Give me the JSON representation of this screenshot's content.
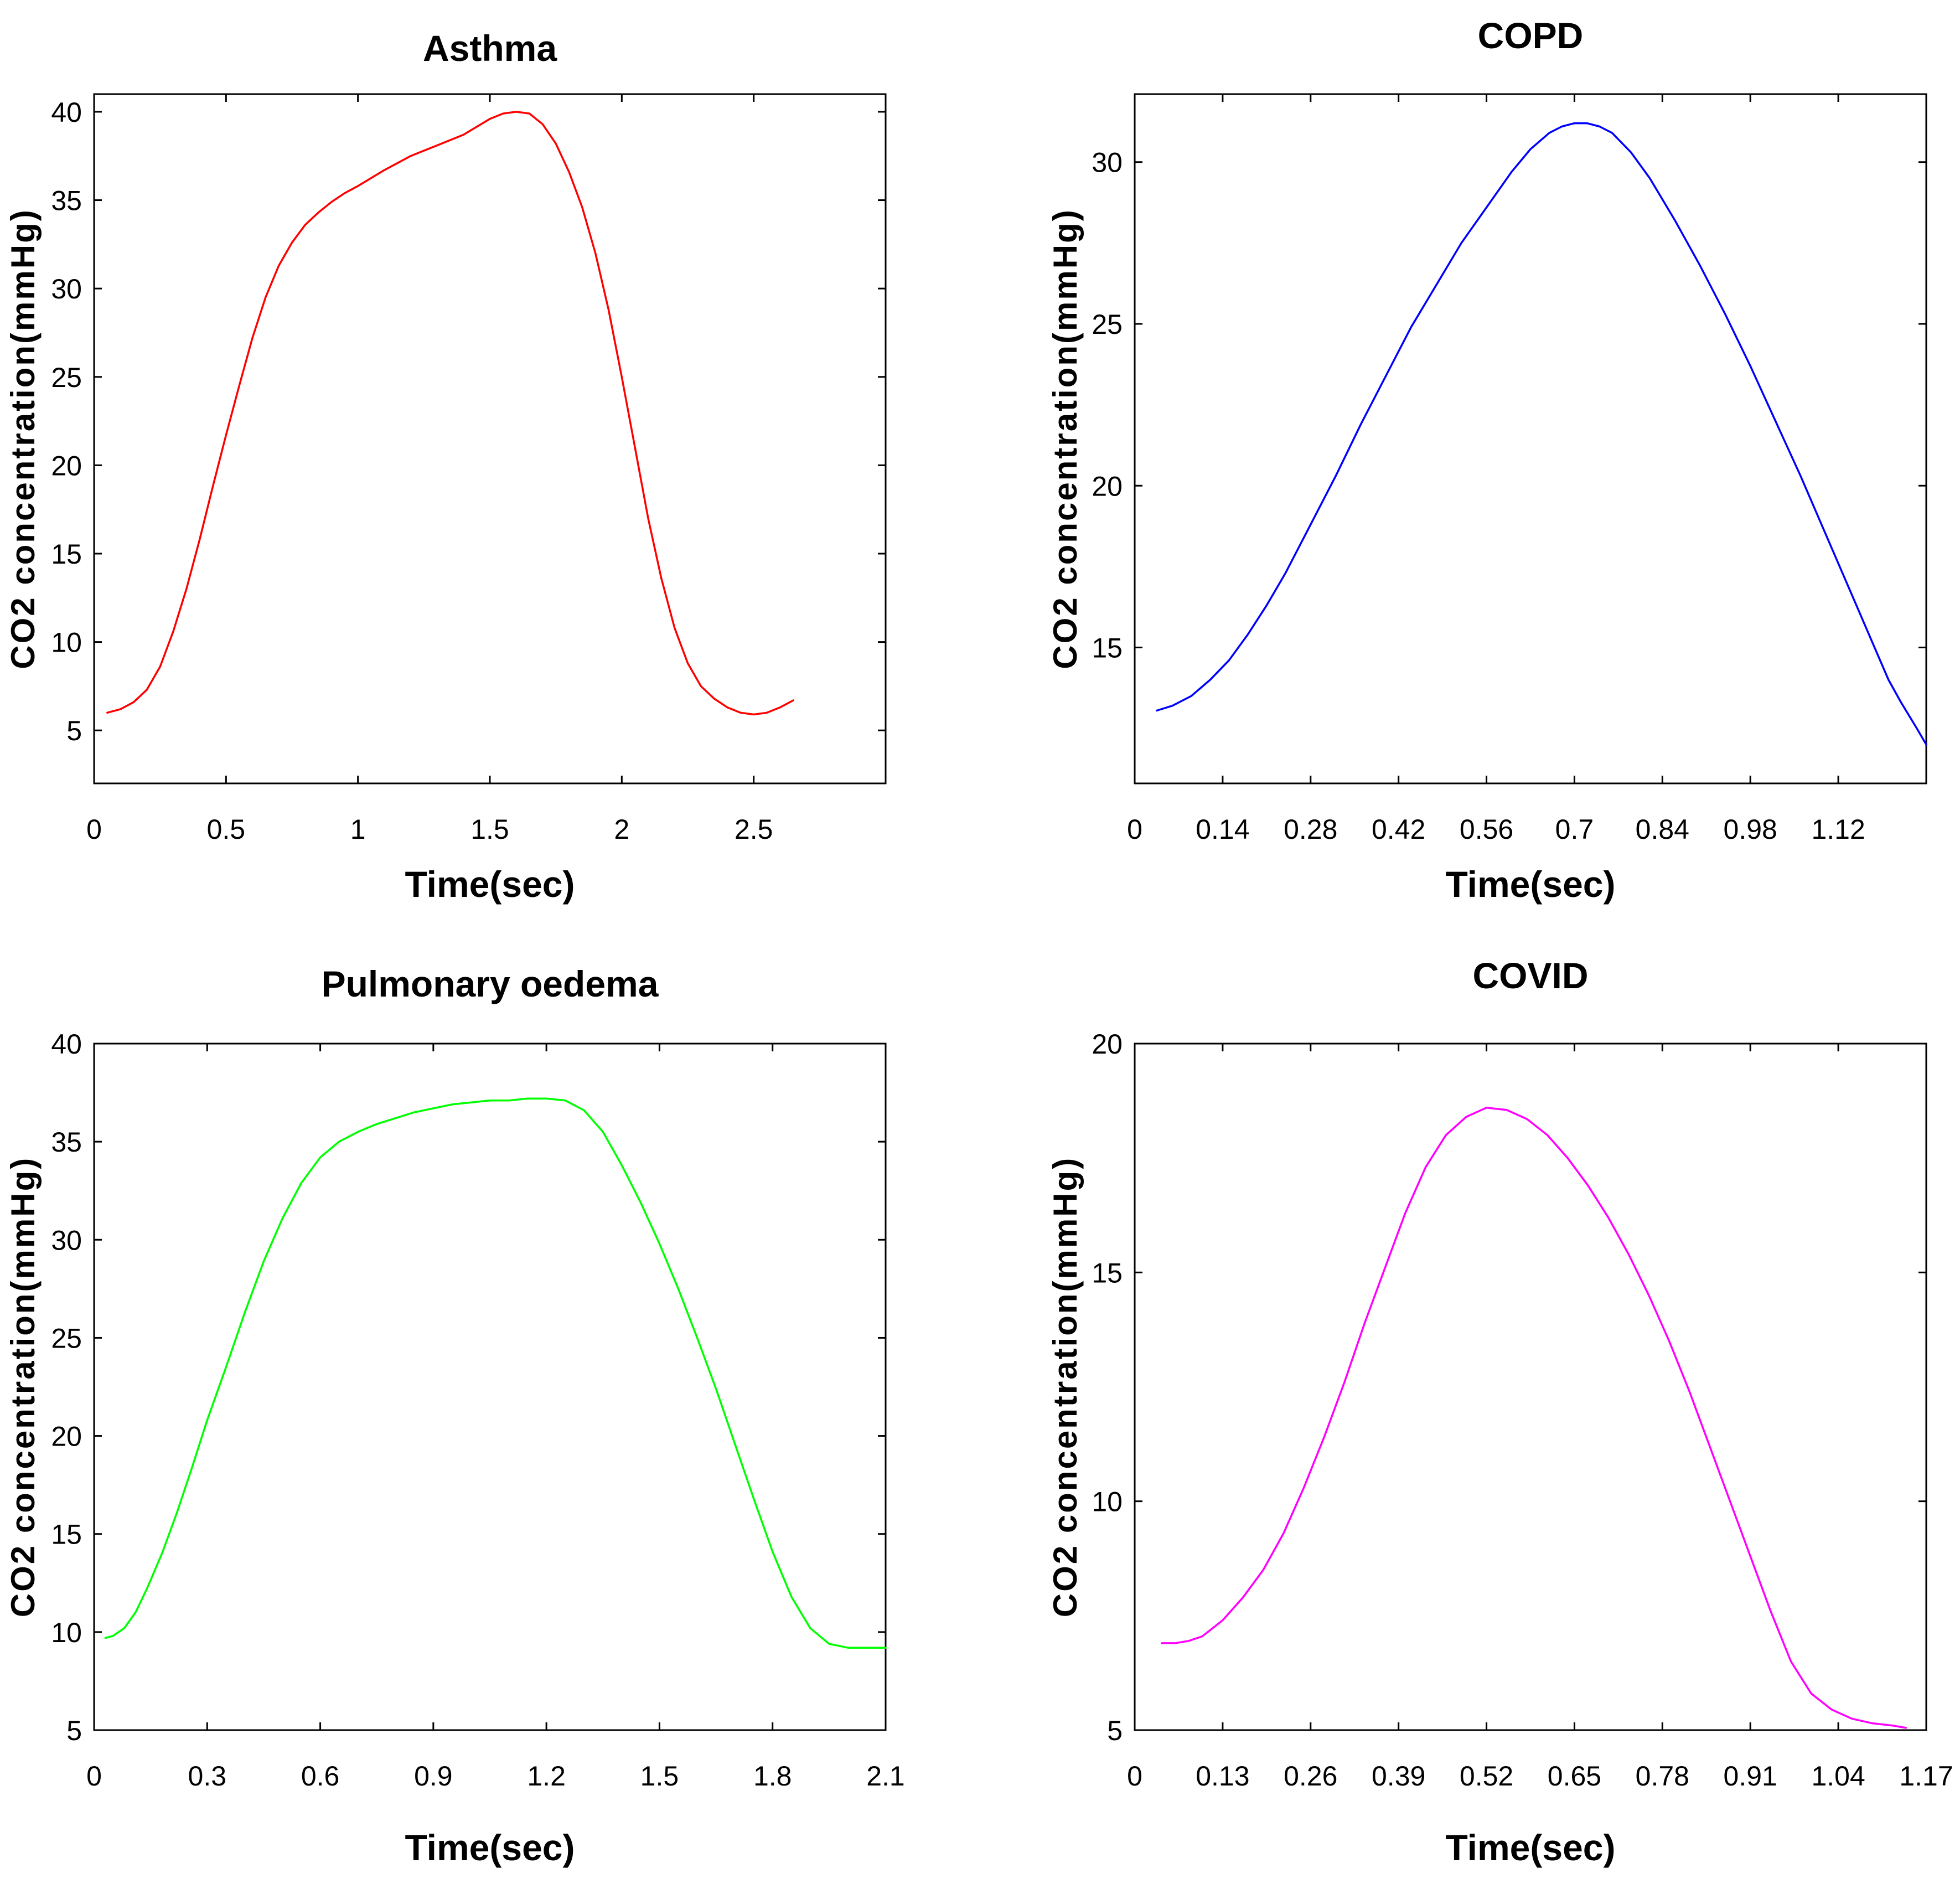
{
  "chart_data": [
    {
      "type": "line",
      "title": "Asthma",
      "xlabel": "Time(sec)",
      "ylabel": "CO2 concentration(mmHg)",
      "xlim": [
        0,
        3.0
      ],
      "ylim": [
        2,
        41
      ],
      "xticks": [
        0,
        0.5,
        1,
        1.5,
        2,
        2.5
      ],
      "xtick_labels": [
        "0",
        "0.5",
        "1",
        "1.5",
        "2",
        "2.5"
      ],
      "yticks": [
        5,
        10,
        15,
        20,
        25,
        30,
        35,
        40
      ],
      "ytick_labels": [
        "5",
        "10",
        "15",
        "20",
        "25",
        "30",
        "35",
        "40"
      ],
      "color": "#ff0000",
      "grid": false,
      "series": [
        {
          "name": "Asthma",
          "x": [
            0.05,
            0.1,
            0.15,
            0.2,
            0.25,
            0.3,
            0.35,
            0.4,
            0.45,
            0.5,
            0.55,
            0.6,
            0.65,
            0.7,
            0.75,
            0.8,
            0.85,
            0.9,
            0.95,
            1.0,
            1.1,
            1.2,
            1.3,
            1.4,
            1.5,
            1.55,
            1.6,
            1.65,
            1.7,
            1.75,
            1.8,
            1.85,
            1.9,
            1.95,
            2.0,
            2.05,
            2.1,
            2.15,
            2.2,
            2.25,
            2.3,
            2.35,
            2.4,
            2.45,
            2.5,
            2.55,
            2.6,
            2.65
          ],
          "y": [
            6.0,
            6.2,
            6.6,
            7.3,
            8.6,
            10.6,
            13.0,
            15.8,
            18.8,
            21.7,
            24.5,
            27.2,
            29.5,
            31.3,
            32.6,
            33.6,
            34.3,
            34.9,
            35.4,
            35.8,
            36.7,
            37.5,
            38.1,
            38.7,
            39.6,
            39.9,
            40.0,
            39.9,
            39.3,
            38.2,
            36.6,
            34.6,
            32.0,
            28.8,
            25.0,
            21.0,
            17.0,
            13.6,
            10.8,
            8.8,
            7.5,
            6.8,
            6.3,
            6.0,
            5.9,
            6.0,
            6.3,
            6.7
          ]
        }
      ]
    },
    {
      "type": "line",
      "title": "COPD",
      "xlabel": "Time(sec)",
      "ylabel": "CO2 concentration(mmHg)",
      "xlim": [
        0,
        1.26
      ],
      "ylim": [
        10.8,
        32.1
      ],
      "xticks": [
        0,
        0.14,
        0.28,
        0.42,
        0.56,
        0.7,
        0.84,
        0.98,
        1.12
      ],
      "xtick_labels": [
        "0",
        "0.14",
        "0.28",
        "0.42",
        "0.56",
        "0.7",
        "0.84",
        "0.98",
        "1.12"
      ],
      "yticks": [
        15,
        20,
        25,
        30
      ],
      "ytick_labels": [
        "15",
        "20",
        "25",
        "30"
      ],
      "color": "#0000ff",
      "grid": false,
      "series": [
        {
          "name": "COPD",
          "x": [
            0.035,
            0.06,
            0.09,
            0.12,
            0.15,
            0.18,
            0.21,
            0.24,
            0.28,
            0.32,
            0.36,
            0.4,
            0.44,
            0.48,
            0.52,
            0.56,
            0.6,
            0.63,
            0.66,
            0.68,
            0.7,
            0.72,
            0.74,
            0.76,
            0.79,
            0.82,
            0.86,
            0.9,
            0.94,
            0.98,
            1.02,
            1.06,
            1.1,
            1.14,
            1.18,
            1.2,
            1.22,
            1.245,
            1.26
          ],
          "y": [
            13.05,
            13.2,
            13.5,
            14.0,
            14.6,
            15.4,
            16.3,
            17.3,
            18.8,
            20.3,
            21.9,
            23.4,
            24.9,
            26.2,
            27.5,
            28.6,
            29.7,
            30.4,
            30.9,
            31.1,
            31.2,
            31.2,
            31.1,
            30.9,
            30.3,
            29.5,
            28.2,
            26.8,
            25.3,
            23.7,
            22.0,
            20.3,
            18.5,
            16.7,
            14.9,
            14.0,
            13.3,
            12.5,
            12.0
          ]
        }
      ]
    },
    {
      "type": "line",
      "title": "Pulmonary oedema",
      "xlabel": "Time(sec)",
      "ylabel": "CO2 concentration(mmHg)",
      "xlim": [
        0,
        2.1
      ],
      "ylim": [
        5,
        40
      ],
      "xticks": [
        0,
        0.3,
        0.6,
        0.9,
        1.2,
        1.5,
        1.8,
        2.1
      ],
      "xtick_labels": [
        "0",
        "0.3",
        "0.6",
        "0.9",
        "1.2",
        "1.5",
        "1.8",
        "2.1"
      ],
      "yticks": [
        5,
        10,
        15,
        20,
        25,
        30,
        35,
        40
      ],
      "ytick_labels": [
        "5",
        "10",
        "15",
        "20",
        "25",
        "30",
        "35",
        "40"
      ],
      "color": "#00ff00",
      "grid": false,
      "series": [
        {
          "name": "Pulmonary oedema",
          "x": [
            0.03,
            0.05,
            0.08,
            0.11,
            0.14,
            0.18,
            0.22,
            0.26,
            0.3,
            0.35,
            0.4,
            0.45,
            0.5,
            0.55,
            0.6,
            0.65,
            0.7,
            0.75,
            0.8,
            0.85,
            0.9,
            0.95,
            1.0,
            1.05,
            1.1,
            1.15,
            1.2,
            1.25,
            1.3,
            1.35,
            1.4,
            1.45,
            1.5,
            1.55,
            1.6,
            1.65,
            1.7,
            1.75,
            1.8,
            1.85,
            1.9,
            1.95,
            2.0,
            2.03,
            2.06,
            2.1
          ],
          "y": [
            9.7,
            9.8,
            10.2,
            11.0,
            12.2,
            14.0,
            16.1,
            18.4,
            20.8,
            23.5,
            26.3,
            28.9,
            31.1,
            32.9,
            34.2,
            35.0,
            35.5,
            35.9,
            36.2,
            36.5,
            36.7,
            36.9,
            37.0,
            37.1,
            37.1,
            37.2,
            37.2,
            37.1,
            36.6,
            35.5,
            33.8,
            31.9,
            29.8,
            27.5,
            25.0,
            22.4,
            19.6,
            16.8,
            14.1,
            11.8,
            10.2,
            9.4,
            9.2,
            9.2,
            9.2,
            9.2
          ]
        }
      ]
    },
    {
      "type": "line",
      "title": "COVID",
      "xlabel": "Time(sec)",
      "ylabel": "CO2 concentration(mmHg)",
      "xlim": [
        0,
        1.17
      ],
      "ylim": [
        5,
        20
      ],
      "xticks": [
        0,
        0.13,
        0.26,
        0.39,
        0.52,
        0.65,
        0.78,
        0.91,
        1.04,
        1.17
      ],
      "xtick_labels": [
        "0",
        "0.13",
        "0.26",
        "0.39",
        "0.52",
        "0.65",
        "0.78",
        "0.91",
        "1.04",
        "1.17"
      ],
      "yticks": [
        5,
        10,
        15,
        20
      ],
      "ytick_labels": [
        "5",
        "10",
        "15",
        "20"
      ],
      "color": "#ff00ff",
      "grid": false,
      "series": [
        {
          "name": "COVID",
          "x": [
            0.04,
            0.06,
            0.08,
            0.1,
            0.13,
            0.16,
            0.19,
            0.22,
            0.25,
            0.28,
            0.31,
            0.34,
            0.37,
            0.4,
            0.43,
            0.46,
            0.49,
            0.52,
            0.55,
            0.58,
            0.61,
            0.64,
            0.67,
            0.7,
            0.73,
            0.76,
            0.79,
            0.82,
            0.85,
            0.88,
            0.91,
            0.94,
            0.97,
            1.0,
            1.03,
            1.06,
            1.09,
            1.12,
            1.14
          ],
          "y": [
            6.9,
            6.9,
            6.95,
            7.05,
            7.4,
            7.9,
            8.5,
            9.3,
            10.3,
            11.4,
            12.6,
            13.9,
            15.1,
            16.3,
            17.3,
            18.0,
            18.4,
            18.6,
            18.55,
            18.35,
            18.0,
            17.5,
            16.9,
            16.2,
            15.4,
            14.5,
            13.5,
            12.4,
            11.2,
            10.0,
            8.8,
            7.6,
            6.5,
            5.8,
            5.45,
            5.25,
            5.15,
            5.1,
            5.05
          ]
        }
      ]
    }
  ]
}
